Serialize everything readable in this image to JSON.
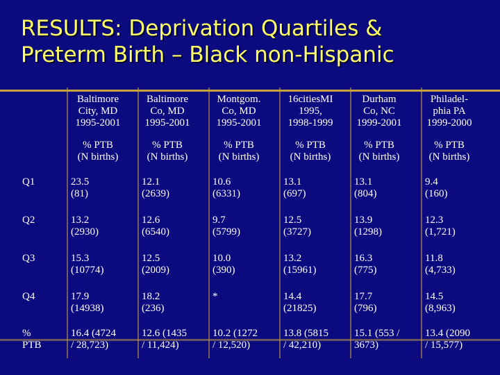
{
  "title": {
    "line1": "RESULTS: Deprivation Quartiles &",
    "line2": "Preterm Birth – Black non-Hispanic"
  },
  "columns": [
    {
      "name": [
        "Baltimore",
        "City, MD",
        "1995-2001"
      ],
      "unit": [
        "% PTB",
        "(N births)"
      ]
    },
    {
      "name": [
        "Baltimore",
        "Co, MD",
        "1995-2001"
      ],
      "unit": [
        "% PTB",
        "(N births)"
      ]
    },
    {
      "name": [
        "Montgom.",
        "Co, MD",
        "1995-2001"
      ],
      "unit": [
        "% PTB",
        "(N births)"
      ]
    },
    {
      "name": [
        "16citiesMI",
        "1995,",
        "1998-1999"
      ],
      "unit": [
        "% PTB",
        "(N births)"
      ]
    },
    {
      "name": [
        "Durham",
        "Co, NC",
        "1999-2001"
      ],
      "unit": [
        "% PTB",
        "(N births)"
      ]
    },
    {
      "name": [
        "Philadel-",
        "phia PA",
        "1999-2000"
      ],
      "unit": [
        "% PTB",
        "(N births)"
      ]
    }
  ],
  "rows": [
    {
      "label": [
        "Q1"
      ],
      "cells": [
        [
          "23.5",
          "(81)"
        ],
        [
          "12.1",
          " (2639)"
        ],
        [
          "10.6",
          "(6331)"
        ],
        [
          "13.1",
          " (697)"
        ],
        [
          "13.1",
          "(804)"
        ],
        [
          "9.4",
          "(160)"
        ]
      ]
    },
    {
      "label": [
        "Q2"
      ],
      "cells": [
        [
          "13.2",
          "(2930)"
        ],
        [
          "12.6",
          "(6540)"
        ],
        [
          "9.7",
          "(5799)"
        ],
        [
          "12.5",
          "(3727)"
        ],
        [
          "13.9",
          "(1298)"
        ],
        [
          "12.3",
          "(1,721)"
        ]
      ]
    },
    {
      "label": [
        "Q3"
      ],
      "cells": [
        [
          "15.3",
          "(10774)"
        ],
        [
          "12.5",
          "(2009)"
        ],
        [
          "10.0",
          " (390)"
        ],
        [
          "13.2",
          "(15961)"
        ],
        [
          "16.3",
          "(775)"
        ],
        [
          "11.8",
          "(4,733)"
        ]
      ]
    },
    {
      "label": [
        "Q4"
      ],
      "cells": [
        [
          "17.9",
          "(14938)"
        ],
        [
          "18.2",
          "(236)"
        ],
        [
          "*",
          ""
        ],
        [
          "14.4",
          "(21825)"
        ],
        [
          "17.7",
          "(796)"
        ],
        [
          "14.5",
          "(8,963)"
        ]
      ]
    },
    {
      "label": [
        "%",
        "PTB"
      ],
      "cells": [
        [
          "16.4 (4724",
          "/ 28,723)"
        ],
        [
          "12.6 (1435",
          "/ 11,424)"
        ],
        [
          "10.2 (1272",
          "/ 12,520)"
        ],
        [
          "13.8 (5815",
          "/ 42,210)"
        ],
        [
          "15.1 (553 /",
          "3673)"
        ],
        [
          "13.4 (2090",
          "/ 15,577)"
        ]
      ]
    }
  ]
}
